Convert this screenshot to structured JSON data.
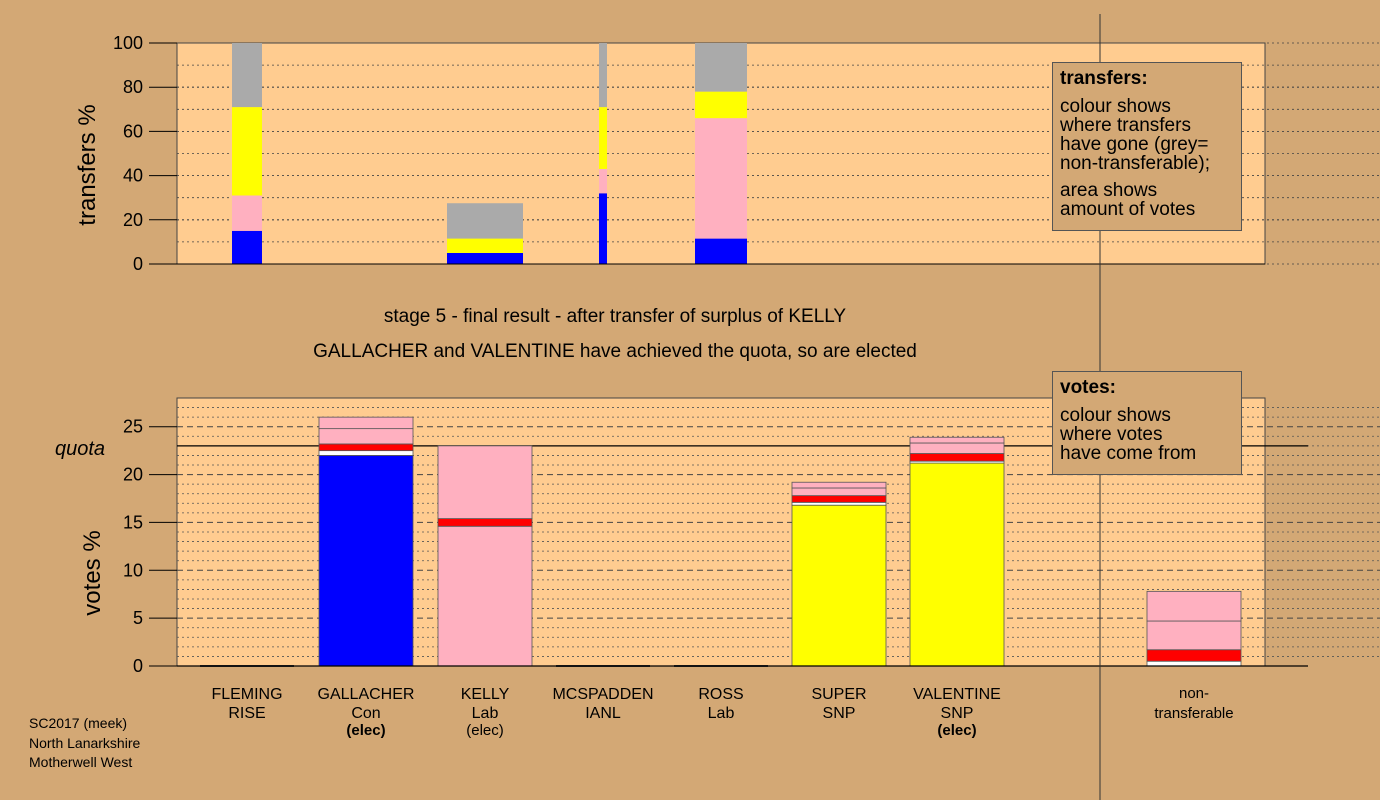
{
  "chart_data": [
    {
      "type": "bar",
      "ylabel": "transfers %",
      "ylim": [
        0,
        100
      ],
      "yticks": [
        0,
        20,
        40,
        60,
        80,
        100
      ],
      "categories": [
        "FLEMING RISE",
        "GALLACHER Con",
        "KELLY Lab",
        "MCSPADDEN IANL",
        "ROSS Lab",
        "SUPER SNP",
        "VALENTINE SNP"
      ],
      "series": [
        {
          "color": "#0000ff",
          "values": [
            15,
            0,
            5,
            32,
            11.5,
            0,
            0
          ]
        },
        {
          "color": "#ffb0c0",
          "values": [
            16,
            0,
            0,
            11,
            54.5,
            0,
            0
          ]
        },
        {
          "color": "#ffff00",
          "values": [
            40,
            0,
            6.5,
            28,
            12,
            0,
            0
          ]
        },
        {
          "color": "#aaaaaa",
          "values": [
            29,
            0,
            16,
            29,
            22,
            0,
            0
          ]
        }
      ]
    },
    {
      "type": "bar",
      "ylabel": "votes %",
      "ylim": [
        0,
        28
      ],
      "yticks": [
        0,
        5,
        10,
        15,
        20,
        25
      ],
      "quota": 23,
      "categories": [
        "FLEMING RISE",
        "GALLACHER Con",
        "KELLY Lab",
        "MCSPADDEN IANL",
        "ROSS Lab",
        "SUPER SNP",
        "VALENTINE SNP",
        "non-transferable"
      ],
      "stacks": [
        [],
        [
          {
            "v": 22.0,
            "c": "#0000ff"
          },
          {
            "v": 0.5,
            "c": "#ffffff"
          },
          {
            "v": 0.7,
            "c": "#ff0000"
          },
          {
            "v": 1.6,
            "c": "#ffb0c0"
          },
          {
            "v": 1.2,
            "c": "#ffb0c0"
          }
        ],
        [
          {
            "v": 14.6,
            "c": "#ffb0c0"
          },
          {
            "v": 0.8,
            "c": "#ff0000"
          },
          {
            "v": 7.6,
            "c": "#ffb0c0"
          }
        ],
        [],
        [],
        [
          {
            "v": 16.8,
            "c": "#ffff00"
          },
          {
            "v": 0.3,
            "c": "#ffffff"
          },
          {
            "v": 0.7,
            "c": "#ff0000"
          },
          {
            "v": 0.8,
            "c": "#ffb0c0"
          },
          {
            "v": 0.6,
            "c": "#ffb0c0"
          }
        ],
        [
          {
            "v": 21.2,
            "c": "#ffff00"
          },
          {
            "v": 0.2,
            "c": "#ffffff"
          },
          {
            "v": 0.8,
            "c": "#ff0000"
          },
          {
            "v": 1.1,
            "c": "#ffb0c0"
          },
          {
            "v": 0.6,
            "c": "#ffb0c0"
          }
        ],
        [
          {
            "v": 0.5,
            "c": "#ffffff"
          },
          {
            "v": 1.2,
            "c": "#ff0000"
          },
          {
            "v": 3.0,
            "c": "#ffb0c0"
          },
          {
            "v": 3.1,
            "c": "#ffb0c0"
          }
        ]
      ]
    }
  ],
  "candidates": [
    {
      "name": "FLEMING",
      "party": "RISE",
      "status": ""
    },
    {
      "name": "GALLACHER",
      "party": "Con",
      "status": "(elec)",
      "bold": true
    },
    {
      "name": "KELLY",
      "party": "Lab",
      "status": "(elec)",
      "bold": false
    },
    {
      "name": "MCSPADDEN",
      "party": "IANL",
      "status": ""
    },
    {
      "name": "ROSS",
      "party": "Lab",
      "status": ""
    },
    {
      "name": "SUPER",
      "party": "SNP",
      "status": ""
    },
    {
      "name": "VALENTINE",
      "party": "SNP",
      "status": "(elec)",
      "bold": true
    }
  ],
  "nontransferable": {
    "line1": "non-",
    "line2": "transferable"
  },
  "quota_label": "quota",
  "stage_line1": "stage 5 - final result - after transfer of surplus of KELLY",
  "stage_line2": "GALLACHER and VALENTINE have achieved the quota, so are elected",
  "legend_transfers": {
    "title": "transfers:",
    "lines_a": [
      "colour shows",
      "where transfers",
      "have gone (grey=",
      "non-transferable);"
    ],
    "lines_b": [
      "area shows",
      "amount of votes"
    ]
  },
  "legend_votes": {
    "title": "votes:",
    "lines": [
      "colour shows",
      "where votes",
      "have come from"
    ]
  },
  "footer": [
    "SC2017 (meek)",
    "North Lanarkshire",
    "Motherwell West"
  ],
  "colors": {
    "background": "#d3a875",
    "plot": "#ffcc90"
  }
}
